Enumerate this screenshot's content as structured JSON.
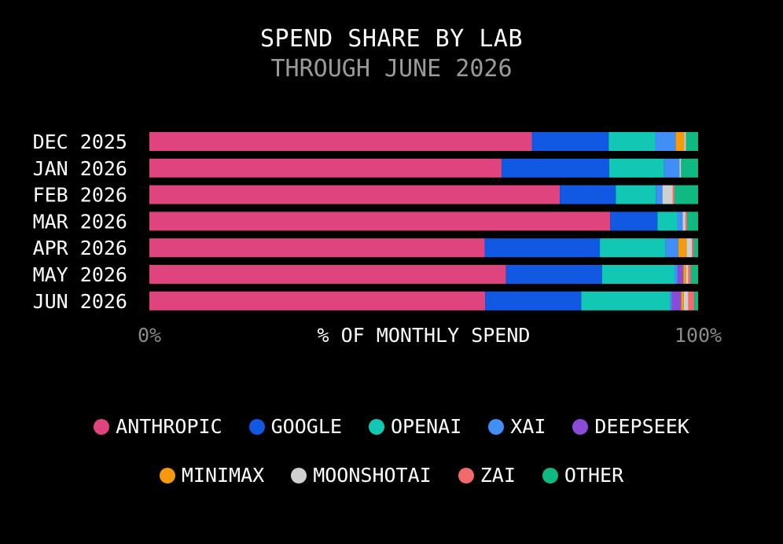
{
  "title": "SPEND SHARE BY LAB",
  "subtitle": "THROUGH JUNE 2026",
  "colors": {
    "background": "#000000",
    "title": "#ffffff",
    "subtitle": "#9a9a9a",
    "tick": "#8a8a8a"
  },
  "chart_data": {
    "type": "bar",
    "orientation": "horizontal",
    "stacked": true,
    "normalized": true,
    "title": "SPEND SHARE BY LAB",
    "subtitle": "THROUGH JUNE 2026",
    "xlabel": "% OF MONTHLY SPEND",
    "ylabel": "",
    "xlim": [
      0,
      100
    ],
    "x_ticks": [
      "0%",
      "100%"
    ],
    "grid": false,
    "legend_position": "bottom",
    "categories": [
      "DEC 2025",
      "JAN 2026",
      "FEB 2026",
      "MAR 2026",
      "APR 2026",
      "MAY 2026",
      "JUN 2026"
    ],
    "series": [
      {
        "name": "ANTHROPIC",
        "color": "#e0447e",
        "values": [
          69.7,
          64.2,
          74.8,
          84.0,
          61.1,
          65.0,
          61.2
        ]
      },
      {
        "name": "GOOGLE",
        "color": "#1158e3",
        "values": [
          14.0,
          19.6,
          10.2,
          8.6,
          21.0,
          17.5,
          17.5
        ]
      },
      {
        "name": "OPENAI",
        "color": "#13c7b5",
        "values": [
          8.5,
          10.0,
          7.3,
          3.6,
          12.0,
          13.2,
          16.2
        ]
      },
      {
        "name": "XAI",
        "color": "#3f8ff7",
        "values": [
          3.7,
          2.8,
          1.2,
          1.0,
          2.3,
          0.6,
          0.3
        ]
      },
      {
        "name": "DEEPSEEK",
        "color": "#8a4bd6",
        "values": [
          0.0,
          0.0,
          0.0,
          0.0,
          0.0,
          1.0,
          1.7
        ]
      },
      {
        "name": "MINIMAX",
        "color": "#f59a0d",
        "values": [
          1.6,
          0.0,
          0.0,
          0.0,
          1.5,
          0.5,
          0.5
        ]
      },
      {
        "name": "MOONSHOTAI",
        "color": "#cfcfcf",
        "values": [
          0.3,
          0.3,
          1.9,
          0.5,
          1.0,
          0.4,
          0.8
        ]
      },
      {
        "name": "ZAI",
        "color": "#f36a6a",
        "values": [
          0.0,
          0.0,
          0.3,
          0.3,
          0.3,
          0.5,
          1.1
        ]
      },
      {
        "name": "OTHER",
        "color": "#10b882",
        "values": [
          2.2,
          3.1,
          4.3,
          2.0,
          0.8,
          1.3,
          0.7
        ]
      }
    ]
  }
}
